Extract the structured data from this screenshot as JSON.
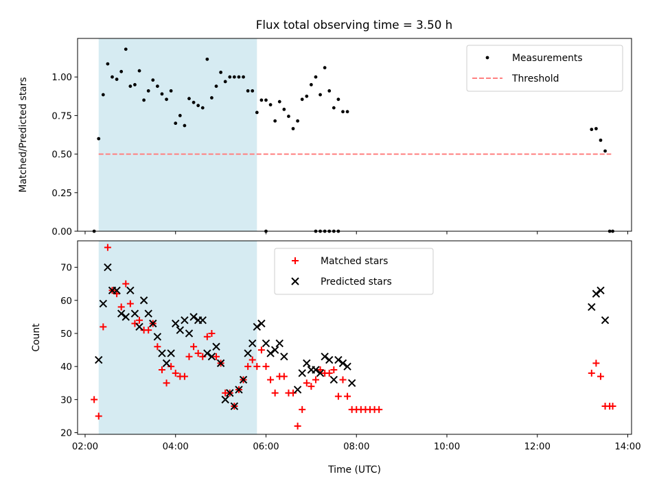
{
  "title": "Flux total observing time = 3.50 h",
  "colors": {
    "measurement": "#000000",
    "threshold": "#ff7f7f",
    "matched": "#ff0000",
    "predicted": "#000000",
    "shade": "#add8e6"
  },
  "chart_data": [
    {
      "type": "scatter",
      "ylabel": "Matched/Predicted stars",
      "xlim": [
        "01:50",
        "14:05"
      ],
      "ylim": [
        0,
        1.25
      ],
      "x_ticks": [
        "02:00",
        "04:00",
        "06:00",
        "08:00",
        "10:00",
        "12:00",
        "14:00"
      ],
      "y_ticks": [
        "0.00",
        "0.25",
        "0.50",
        "0.75",
        "1.00"
      ],
      "shaded_span": [
        "02:18",
        "05:48"
      ],
      "legend_placement": "upper right",
      "legend": [
        "Measurements",
        "Threshold"
      ],
      "threshold": {
        "label": "Threshold",
        "value": 0.5,
        "x_range": [
          "02:18",
          "13:38"
        ]
      },
      "series": [
        {
          "name": "Measurements",
          "marker": "dot",
          "points": [
            [
              "02:12",
              0.0
            ],
            [
              "02:18",
              0.6
            ],
            [
              "02:24",
              0.885
            ],
            [
              "02:30",
              1.085
            ],
            [
              "02:36",
              1.0
            ],
            [
              "02:42",
              0.985
            ],
            [
              "02:48",
              1.035
            ],
            [
              "02:54",
              1.18
            ],
            [
              "03:00",
              0.94
            ],
            [
              "03:06",
              0.95
            ],
            [
              "03:12",
              1.04
            ],
            [
              "03:18",
              0.85
            ],
            [
              "03:24",
              0.91
            ],
            [
              "03:30",
              0.98
            ],
            [
              "03:36",
              0.94
            ],
            [
              "03:42",
              0.89
            ],
            [
              "03:48",
              0.855
            ],
            [
              "03:54",
              0.91
            ],
            [
              "04:00",
              0.7
            ],
            [
              "04:06",
              0.75
            ],
            [
              "04:12",
              0.685
            ],
            [
              "04:18",
              0.86
            ],
            [
              "04:24",
              0.835
            ],
            [
              "04:30",
              0.815
            ],
            [
              "04:36",
              0.8
            ],
            [
              "04:42",
              1.115
            ],
            [
              "04:48",
              0.865
            ],
            [
              "04:54",
              0.94
            ],
            [
              "05:00",
              1.03
            ],
            [
              "05:06",
              0.97
            ],
            [
              "05:12",
              1.0
            ],
            [
              "05:18",
              1.0
            ],
            [
              "05:24",
              1.0
            ],
            [
              "05:30",
              1.0
            ],
            [
              "05:36",
              0.91
            ],
            [
              "05:42",
              0.91
            ],
            [
              "05:48",
              0.77
            ],
            [
              "05:54",
              0.85
            ],
            [
              "06:00",
              0.85
            ],
            [
              "06:06",
              0.82
            ],
            [
              "06:12",
              0.715
            ],
            [
              "06:18",
              0.84
            ],
            [
              "06:24",
              0.79
            ],
            [
              "06:30",
              0.745
            ],
            [
              "06:00",
              0.0
            ],
            [
              "06:36",
              0.665
            ],
            [
              "06:42",
              0.715
            ],
            [
              "06:48",
              0.855
            ],
            [
              "06:54",
              0.875
            ],
            [
              "07:00",
              0.95
            ],
            [
              "07:06",
              1.0
            ],
            [
              "07:12",
              0.885
            ],
            [
              "07:18",
              1.06
            ],
            [
              "07:24",
              0.91
            ],
            [
              "07:30",
              0.8
            ],
            [
              "07:36",
              0.855
            ],
            [
              "07:42",
              0.775
            ],
            [
              "07:48",
              0.775
            ],
            [
              "07:06",
              0.0
            ],
            [
              "07:12",
              0.0
            ],
            [
              "07:18",
              0.0
            ],
            [
              "07:24",
              0.0
            ],
            [
              "07:30",
              0.0
            ],
            [
              "07:36",
              0.0
            ],
            [
              "13:12",
              0.66
            ],
            [
              "13:18",
              0.665
            ],
            [
              "13:24",
              0.59
            ],
            [
              "13:30",
              0.52
            ],
            [
              "13:36",
              0.0
            ],
            [
              "13:40",
              0.0
            ]
          ]
        }
      ]
    },
    {
      "type": "scatter",
      "xlabel": "Time (UTC)",
      "ylabel": "Count",
      "xlim": [
        "01:50",
        "14:05"
      ],
      "ylim": [
        19.5,
        78
      ],
      "x_ticks": [
        "02:00",
        "04:00",
        "06:00",
        "08:00",
        "10:00",
        "12:00",
        "14:00"
      ],
      "y_ticks": [
        "20",
        "30",
        "40",
        "50",
        "60",
        "70"
      ],
      "shaded_span": [
        "02:18",
        "05:48"
      ],
      "legend_placement": "upper center",
      "legend": [
        "Matched stars",
        "Predicted stars"
      ],
      "series": [
        {
          "name": "Matched stars",
          "marker": "plus",
          "points": [
            [
              "02:12",
              30
            ],
            [
              "02:18",
              25
            ],
            [
              "02:24",
              52
            ],
            [
              "02:30",
              76
            ],
            [
              "02:36",
              63
            ],
            [
              "02:42",
              62
            ],
            [
              "02:48",
              58
            ],
            [
              "02:54",
              65
            ],
            [
              "03:00",
              59
            ],
            [
              "03:06",
              53
            ],
            [
              "03:12",
              54
            ],
            [
              "03:18",
              51
            ],
            [
              "03:24",
              51
            ],
            [
              "03:30",
              53
            ],
            [
              "03:36",
              46
            ],
            [
              "03:42",
              39
            ],
            [
              "03:48",
              35
            ],
            [
              "03:54",
              40
            ],
            [
              "04:00",
              38
            ],
            [
              "04:06",
              37
            ],
            [
              "04:12",
              37
            ],
            [
              "04:18",
              43
            ],
            [
              "04:24",
              46
            ],
            [
              "04:30",
              44
            ],
            [
              "04:36",
              43
            ],
            [
              "04:42",
              49
            ],
            [
              "04:48",
              50
            ],
            [
              "04:54",
              43
            ],
            [
              "05:00",
              41
            ],
            [
              "05:06",
              32
            ],
            [
              "05:12",
              32
            ],
            [
              "05:18",
              28
            ],
            [
              "05:24",
              33
            ],
            [
              "05:30",
              36
            ],
            [
              "05:36",
              40
            ],
            [
              "05:42",
              42
            ],
            [
              "05:48",
              40
            ],
            [
              "05:54",
              45
            ],
            [
              "06:00",
              40
            ],
            [
              "06:06",
              36
            ],
            [
              "06:12",
              32
            ],
            [
              "06:18",
              37
            ],
            [
              "06:24",
              37
            ],
            [
              "06:30",
              32
            ],
            [
              "06:36",
              32
            ],
            [
              "06:42",
              22
            ],
            [
              "06:48",
              27
            ],
            [
              "06:54",
              35
            ],
            [
              "07:00",
              34
            ],
            [
              "07:06",
              36
            ],
            [
              "07:12",
              39
            ],
            [
              "07:18",
              38
            ],
            [
              "07:24",
              38
            ],
            [
              "07:30",
              39
            ],
            [
              "07:36",
              31
            ],
            [
              "07:42",
              36
            ],
            [
              "07:48",
              31
            ],
            [
              "07:54",
              27
            ],
            [
              "08:00",
              27
            ],
            [
              "08:06",
              27
            ],
            [
              "08:12",
              27
            ],
            [
              "08:18",
              27
            ],
            [
              "08:24",
              27
            ],
            [
              "08:30",
              27
            ],
            [
              "13:12",
              38
            ],
            [
              "13:18",
              41
            ],
            [
              "13:24",
              37
            ],
            [
              "13:30",
              28
            ],
            [
              "13:36",
              28
            ],
            [
              "13:40",
              28
            ]
          ]
        },
        {
          "name": "Predicted stars",
          "marker": "x",
          "points": [
            [
              "02:18",
              42
            ],
            [
              "02:24",
              59
            ],
            [
              "02:30",
              70
            ],
            [
              "02:36",
              63
            ],
            [
              "02:42",
              63
            ],
            [
              "02:48",
              56
            ],
            [
              "02:54",
              55
            ],
            [
              "03:00",
              63
            ],
            [
              "03:06",
              56
            ],
            [
              "03:12",
              52
            ],
            [
              "03:18",
              60
            ],
            [
              "03:24",
              56
            ],
            [
              "03:30",
              53
            ],
            [
              "03:36",
              49
            ],
            [
              "03:42",
              44
            ],
            [
              "03:48",
              41
            ],
            [
              "03:54",
              44
            ],
            [
              "04:00",
              53
            ],
            [
              "04:06",
              51
            ],
            [
              "04:12",
              54
            ],
            [
              "04:18",
              50
            ],
            [
              "04:24",
              55
            ],
            [
              "04:30",
              54
            ],
            [
              "04:36",
              54
            ],
            [
              "04:42",
              44
            ],
            [
              "04:48",
              43
            ],
            [
              "04:54",
              46
            ],
            [
              "05:00",
              41
            ],
            [
              "05:06",
              30
            ],
            [
              "05:12",
              32
            ],
            [
              "05:18",
              28
            ],
            [
              "05:24",
              33
            ],
            [
              "05:30",
              36
            ],
            [
              "05:36",
              44
            ],
            [
              "05:42",
              47
            ],
            [
              "05:48",
              52
            ],
            [
              "05:54",
              53
            ],
            [
              "06:00",
              47
            ],
            [
              "06:06",
              44
            ],
            [
              "06:12",
              45
            ],
            [
              "06:18",
              47
            ],
            [
              "06:24",
              43
            ],
            [
              "06:42",
              33
            ],
            [
              "06:48",
              38
            ],
            [
              "06:54",
              41
            ],
            [
              "07:00",
              39
            ],
            [
              "07:06",
              39
            ],
            [
              "07:12",
              38
            ],
            [
              "07:18",
              43
            ],
            [
              "07:24",
              42
            ],
            [
              "07:30",
              36
            ],
            [
              "07:36",
              42
            ],
            [
              "07:42",
              41
            ],
            [
              "07:48",
              40
            ],
            [
              "07:54",
              35
            ],
            [
              "13:12",
              58
            ],
            [
              "13:18",
              62
            ],
            [
              "13:24",
              63
            ],
            [
              "13:30",
              54
            ]
          ]
        }
      ]
    }
  ]
}
